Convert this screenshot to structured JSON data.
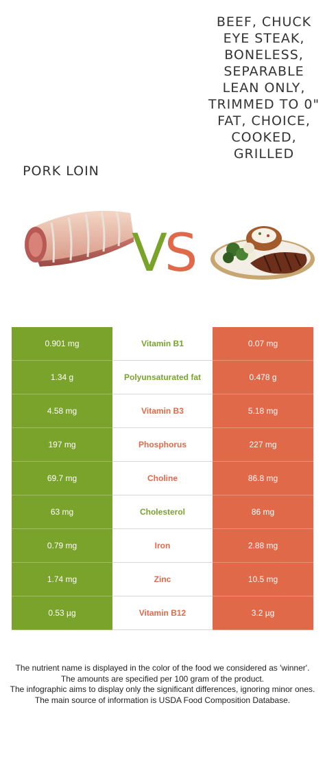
{
  "food_left": {
    "name": "PORK LOIN",
    "color": "#7aa32b"
  },
  "food_right": {
    "name": "BEEF, CHUCK EYE STEAK, BONELESS, SEPARABLE LEAN ONLY, TRIMMED TO 0\" FAT, CHOICE, COOKED, GRILLED",
    "color": "#e0694a"
  },
  "vs": {
    "v": "V",
    "s": "S"
  },
  "rows": [
    {
      "nutrient": "Vitamin B1",
      "left": "0.901 mg",
      "right": "0.07 mg",
      "winner": "left"
    },
    {
      "nutrient": "Polyunsaturated fat",
      "left": "1.34 g",
      "right": "0.478 g",
      "winner": "left"
    },
    {
      "nutrient": "Vitamin B3",
      "left": "4.58 mg",
      "right": "5.18 mg",
      "winner": "right"
    },
    {
      "nutrient": "Phosphorus",
      "left": "197 mg",
      "right": "227 mg",
      "winner": "right"
    },
    {
      "nutrient": "Choline",
      "left": "69.7 mg",
      "right": "86.8 mg",
      "winner": "right"
    },
    {
      "nutrient": "Cholesterol",
      "left": "63 mg",
      "right": "86 mg",
      "winner": "left"
    },
    {
      "nutrient": "Iron",
      "left": "0.79 mg",
      "right": "2.88 mg",
      "winner": "right"
    },
    {
      "nutrient": "Zinc",
      "left": "1.74 mg",
      "right": "10.5 mg",
      "winner": "right"
    },
    {
      "nutrient": "Vitamin B12",
      "left": "0.53 µg",
      "right": "3.2 µg",
      "winner": "right"
    }
  ],
  "notes": [
    "The nutrient name is displayed in the color of the food we considered as 'winner'.",
    "The amounts are specified per 100 gram of the product.",
    "The infographic aims to display only the significant differences, ignoring minor ones.",
    "The main source of information is USDA Food Composition Database."
  ]
}
